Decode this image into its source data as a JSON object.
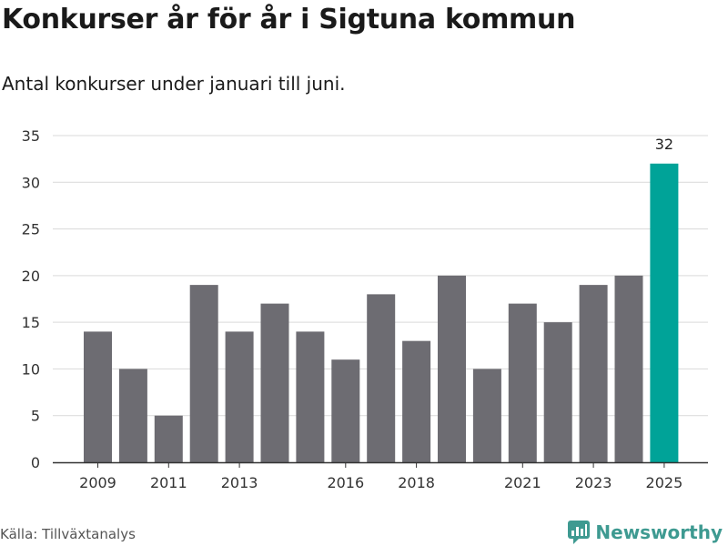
{
  "title": "Konkurser år för år i Sigtuna kommun",
  "subtitle": "Antal konkurser under januari till juni.",
  "source": "Källa: Tillväxtanalys",
  "brand": {
    "name": "Newsworthy",
    "icon": "newsworthy-logo-icon",
    "color": "#3e9a91"
  },
  "colors": {
    "bar": "#6d6c72",
    "highlight": "#00a398",
    "grid": "#d9d9d9",
    "axis": "#333333"
  },
  "chart_data": {
    "type": "bar",
    "title": "Konkurser år för år i Sigtuna kommun",
    "subtitle": "Antal konkurser under januari till juni.",
    "xlabel": "",
    "ylabel": "",
    "categories": [
      "2009",
      "2010",
      "2011",
      "2012",
      "2013",
      "2014",
      "2015",
      "2016",
      "2017",
      "2018",
      "2019",
      "2020",
      "2021",
      "2022",
      "2023",
      "2024",
      "2025"
    ],
    "values": [
      14,
      10,
      5,
      19,
      14,
      17,
      14,
      11,
      18,
      13,
      20,
      10,
      17,
      15,
      19,
      20,
      32
    ],
    "x_tick_labels": [
      "2009",
      "2011",
      "2013",
      "2016",
      "2018",
      "2021",
      "2023",
      "2025"
    ],
    "y_ticks": [
      0,
      5,
      10,
      15,
      20,
      25,
      30,
      35
    ],
    "ylim": [
      0,
      35
    ],
    "grid": true,
    "legend": "none",
    "highlight_category": "2025",
    "data_labels": [
      {
        "category": "2025",
        "text": "32"
      }
    ]
  }
}
